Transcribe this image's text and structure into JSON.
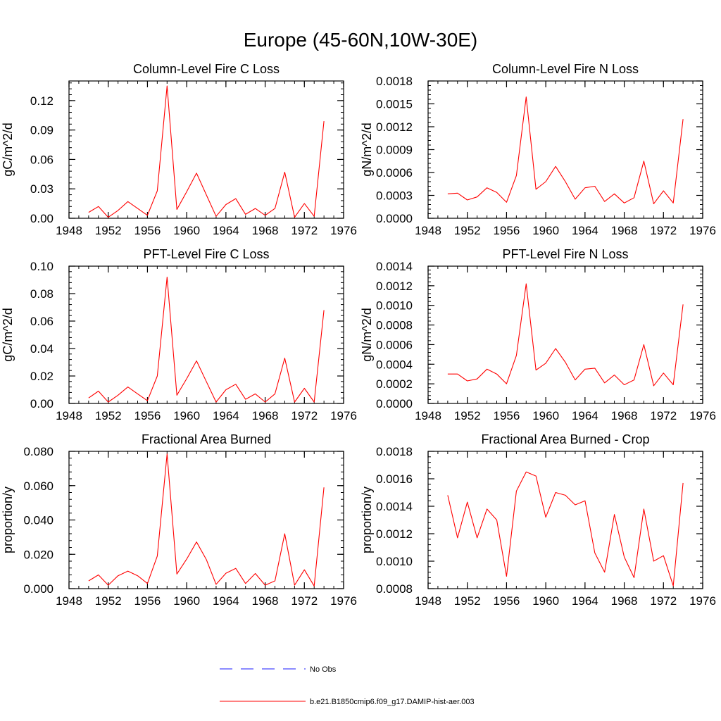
{
  "figure": {
    "title": "Europe (45-60N,10W-30E)"
  },
  "legend": {
    "entries": [
      {
        "label": "No Obs",
        "color": "#1a1aff",
        "style": "dashed"
      },
      {
        "label": "b.e21.B1850cmip6.f09_g17.DAMIP-hist-aer.003",
        "color": "#ff0000",
        "style": "solid"
      }
    ]
  },
  "chart_data": [
    {
      "type": "line",
      "title": "Column-Level Fire C Loss",
      "ylabel": "gC/m^2/d",
      "xlim": [
        1948,
        1976
      ],
      "ylim": [
        0,
        0.14
      ],
      "xticks": [
        "1948",
        "1952",
        "1956",
        "1960",
        "1964",
        "1968",
        "1972",
        "1976"
      ],
      "yticks": [
        "0.00",
        "0.03",
        "0.06",
        "0.09",
        "0.12"
      ],
      "x": [
        1950,
        1951,
        1952,
        1953,
        1954,
        1955,
        1956,
        1957,
        1958,
        1959,
        1960,
        1961,
        1962,
        1963,
        1964,
        1965,
        1966,
        1967,
        1968,
        1969,
        1970,
        1971,
        1972,
        1973,
        1974
      ],
      "series": [
        {
          "name": "b.e21.B1850cmip6.f09_g17.DAMIP-hist-aer.003",
          "color": "#ff0000",
          "values": [
            0.006,
            0.012,
            0.001,
            0.008,
            0.017,
            0.01,
            0.003,
            0.028,
            0.135,
            0.009,
            0.027,
            0.046,
            0.024,
            0.002,
            0.014,
            0.02,
            0.004,
            0.01,
            0.003,
            0.01,
            0.047,
            0.001,
            0.015,
            0.002,
            0.099
          ]
        }
      ],
      "grid": false
    },
    {
      "type": "line",
      "title": "Column-Level Fire N Loss",
      "ylabel": "gN/m^2/d",
      "xlim": [
        1948,
        1976
      ],
      "ylim": [
        0,
        0.0018
      ],
      "xticks": [
        "1948",
        "1952",
        "1956",
        "1960",
        "1964",
        "1968",
        "1972",
        "1976"
      ],
      "yticks": [
        "0.0000",
        "0.0003",
        "0.0006",
        "0.0009",
        "0.0012",
        "0.0015",
        "0.0018"
      ],
      "x": [
        1950,
        1951,
        1952,
        1953,
        1954,
        1955,
        1956,
        1957,
        1958,
        1959,
        1960,
        1961,
        1962,
        1963,
        1964,
        1965,
        1966,
        1967,
        1968,
        1969,
        1970,
        1971,
        1972,
        1973,
        1974
      ],
      "series": [
        {
          "name": "b.e21.B1850cmip6.f09_g17.DAMIP-hist-aer.003",
          "color": "#ff0000",
          "values": [
            0.00032,
            0.00033,
            0.00024,
            0.00028,
            0.0004,
            0.00034,
            0.00021,
            0.00056,
            0.00159,
            0.00038,
            0.00048,
            0.00068,
            0.00048,
            0.00025,
            0.0004,
            0.00042,
            0.00022,
            0.00032,
            0.0002,
            0.00027,
            0.00075,
            0.00019,
            0.00036,
            0.0002,
            0.0013
          ]
        }
      ],
      "grid": false
    },
    {
      "type": "line",
      "title": "PFT-Level Fire C Loss",
      "ylabel": "gC/m^2/d",
      "xlim": [
        1948,
        1976
      ],
      "ylim": [
        0,
        0.1
      ],
      "xticks": [
        "1948",
        "1952",
        "1956",
        "1960",
        "1964",
        "1968",
        "1972",
        "1976"
      ],
      "yticks": [
        "0.00",
        "0.02",
        "0.04",
        "0.06",
        "0.08",
        "0.10"
      ],
      "x": [
        1950,
        1951,
        1952,
        1953,
        1954,
        1955,
        1956,
        1957,
        1958,
        1959,
        1960,
        1961,
        1962,
        1963,
        1964,
        1965,
        1966,
        1967,
        1968,
        1969,
        1970,
        1971,
        1972,
        1973,
        1974
      ],
      "series": [
        {
          "name": "b.e21.B1850cmip6.f09_g17.DAMIP-hist-aer.003",
          "color": "#ff0000",
          "values": [
            0.004,
            0.009,
            0.001,
            0.006,
            0.012,
            0.007,
            0.002,
            0.02,
            0.092,
            0.006,
            0.018,
            0.031,
            0.016,
            0.001,
            0.01,
            0.014,
            0.003,
            0.007,
            0.001,
            0.007,
            0.033,
            0.001,
            0.011,
            0.001,
            0.068
          ]
        }
      ],
      "grid": false
    },
    {
      "type": "line",
      "title": "PFT-Level Fire N Loss",
      "ylabel": "gN/m^2/d",
      "xlim": [
        1948,
        1976
      ],
      "ylim": [
        0,
        0.0014
      ],
      "xticks": [
        "1948",
        "1952",
        "1956",
        "1960",
        "1964",
        "1968",
        "1972",
        "1976"
      ],
      "yticks": [
        "0.0000",
        "0.0002",
        "0.0004",
        "0.0006",
        "0.0008",
        "0.0010",
        "0.0012",
        "0.0014"
      ],
      "x": [
        1950,
        1951,
        1952,
        1953,
        1954,
        1955,
        1956,
        1957,
        1958,
        1959,
        1960,
        1961,
        1962,
        1963,
        1964,
        1965,
        1966,
        1967,
        1968,
        1969,
        1970,
        1971,
        1972,
        1973,
        1974
      ],
      "series": [
        {
          "name": "b.e21.B1850cmip6.f09_g17.DAMIP-hist-aer.003",
          "color": "#ff0000",
          "values": [
            0.0003,
            0.0003,
            0.00023,
            0.00025,
            0.00035,
            0.0003,
            0.0002,
            0.00049,
            0.00122,
            0.00034,
            0.00041,
            0.00056,
            0.00042,
            0.00024,
            0.00035,
            0.00036,
            0.00021,
            0.00029,
            0.00019,
            0.00024,
            0.0006,
            0.00018,
            0.00031,
            0.00019,
            0.00101
          ]
        }
      ],
      "grid": false
    },
    {
      "type": "line",
      "title": "Fractional Area Burned",
      "ylabel": "proportion/y",
      "xlim": [
        1948,
        1976
      ],
      "ylim": [
        0,
        0.08
      ],
      "xticks": [
        "1948",
        "1952",
        "1956",
        "1960",
        "1964",
        "1968",
        "1972",
        "1976"
      ],
      "yticks": [
        "0.000",
        "0.020",
        "0.040",
        "0.060",
        "0.080"
      ],
      "x": [
        1950,
        1951,
        1952,
        1953,
        1954,
        1955,
        1956,
        1957,
        1958,
        1959,
        1960,
        1961,
        1962,
        1963,
        1964,
        1965,
        1966,
        1967,
        1968,
        1969,
        1970,
        1971,
        1972,
        1973,
        1974
      ],
      "series": [
        {
          "name": "b.e21.B1850cmip6.f09_g17.DAMIP-hist-aer.003",
          "color": "#ff0000",
          "values": [
            0.0045,
            0.008,
            0.002,
            0.0075,
            0.0102,
            0.0075,
            0.003,
            0.019,
            0.0785,
            0.0085,
            0.0172,
            0.0272,
            0.017,
            0.0025,
            0.009,
            0.0118,
            0.003,
            0.0088,
            0.002,
            0.0045,
            0.032,
            0.002,
            0.011,
            0.0015,
            0.059
          ]
        }
      ],
      "grid": false
    },
    {
      "type": "line",
      "title": "Fractional Area Burned - Crop",
      "ylabel": "proportion/y",
      "xlim": [
        1948,
        1976
      ],
      "ylim": [
        0.0008,
        0.0018
      ],
      "xticks": [
        "1948",
        "1952",
        "1956",
        "1960",
        "1964",
        "1968",
        "1972",
        "1976"
      ],
      "yticks": [
        "0.0008",
        "0.0010",
        "0.0012",
        "0.0014",
        "0.0016",
        "0.0018"
      ],
      "x": [
        1950,
        1951,
        1952,
        1953,
        1954,
        1955,
        1956,
        1957,
        1958,
        1959,
        1960,
        1961,
        1962,
        1963,
        1964,
        1965,
        1966,
        1967,
        1968,
        1969,
        1970,
        1971,
        1972,
        1973,
        1974
      ],
      "series": [
        {
          "name": "b.e21.B1850cmip6.f09_g17.DAMIP-hist-aer.003",
          "color": "#ff0000",
          "values": [
            0.00148,
            0.00117,
            0.00143,
            0.00117,
            0.00138,
            0.0013,
            0.00089,
            0.00151,
            0.00165,
            0.00162,
            0.00132,
            0.0015,
            0.00148,
            0.00141,
            0.00144,
            0.00106,
            0.00092,
            0.00134,
            0.00103,
            0.00088,
            0.00138,
            0.001,
            0.00104,
            0.00082,
            0.00157
          ]
        }
      ],
      "grid": false
    }
  ]
}
